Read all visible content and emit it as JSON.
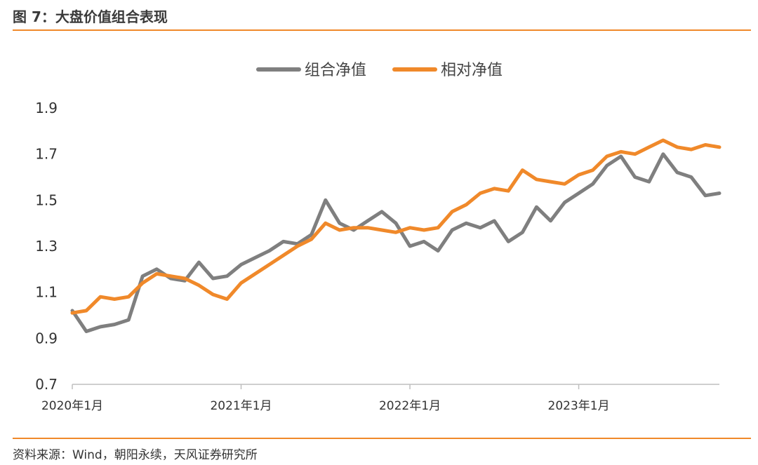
{
  "header": {
    "figure_title": "图 7：大盘价值组合表现"
  },
  "footer": {
    "source": "资料来源：Wind，朝阳永续，天风证券研究所"
  },
  "colors": {
    "accent": "#f0892a",
    "series_portfolio": "#7f7f7f",
    "series_relative": "#f0892a"
  },
  "chart_data": {
    "type": "line",
    "title": "",
    "xlabel": "",
    "ylabel": "",
    "ylim": [
      0.7,
      1.9
    ],
    "yticks": [
      "1.9",
      "1.7",
      "1.5",
      "1.3",
      "1.1",
      "0.9",
      "0.7"
    ],
    "xticks": [
      "2020年1月",
      "2021年1月",
      "2022年1月",
      "2023年1月"
    ],
    "xrange": [
      "2020-01",
      "2023-11"
    ],
    "legend": "top-center",
    "grid": false,
    "x": [
      "2020-01",
      "2020-02",
      "2020-03",
      "2020-04",
      "2020-05",
      "2020-06",
      "2020-07",
      "2020-08",
      "2020-09",
      "2020-10",
      "2020-11",
      "2020-12",
      "2021-01",
      "2021-02",
      "2021-03",
      "2021-04",
      "2021-05",
      "2021-06",
      "2021-07",
      "2021-08",
      "2021-09",
      "2021-10",
      "2021-11",
      "2021-12",
      "2022-01",
      "2022-02",
      "2022-03",
      "2022-04",
      "2022-05",
      "2022-06",
      "2022-07",
      "2022-08",
      "2022-09",
      "2022-10",
      "2022-11",
      "2022-12",
      "2023-01",
      "2023-02",
      "2023-03",
      "2023-04",
      "2023-05",
      "2023-06",
      "2023-07",
      "2023-08",
      "2023-09",
      "2023-10",
      "2023-11"
    ],
    "series": [
      {
        "name": "组合净值",
        "values": [
          1.02,
          0.93,
          0.95,
          0.96,
          0.98,
          1.17,
          1.2,
          1.16,
          1.15,
          1.23,
          1.16,
          1.17,
          1.22,
          1.25,
          1.28,
          1.32,
          1.31,
          1.35,
          1.5,
          1.4,
          1.37,
          1.41,
          1.45,
          1.4,
          1.3,
          1.32,
          1.28,
          1.37,
          1.4,
          1.38,
          1.41,
          1.32,
          1.36,
          1.47,
          1.41,
          1.49,
          1.53,
          1.57,
          1.65,
          1.69,
          1.6,
          1.58,
          1.7,
          1.62,
          1.6,
          1.52,
          1.53
        ]
      },
      {
        "name": "相对净值",
        "values": [
          1.01,
          1.02,
          1.08,
          1.07,
          1.08,
          1.14,
          1.18,
          1.17,
          1.16,
          1.13,
          1.09,
          1.07,
          1.14,
          1.18,
          1.22,
          1.26,
          1.3,
          1.33,
          1.4,
          1.37,
          1.38,
          1.38,
          1.37,
          1.36,
          1.38,
          1.37,
          1.38,
          1.45,
          1.48,
          1.53,
          1.55,
          1.54,
          1.63,
          1.59,
          1.58,
          1.57,
          1.61,
          1.63,
          1.69,
          1.71,
          1.7,
          1.73,
          1.76,
          1.73,
          1.72,
          1.74,
          1.73
        ]
      }
    ]
  }
}
